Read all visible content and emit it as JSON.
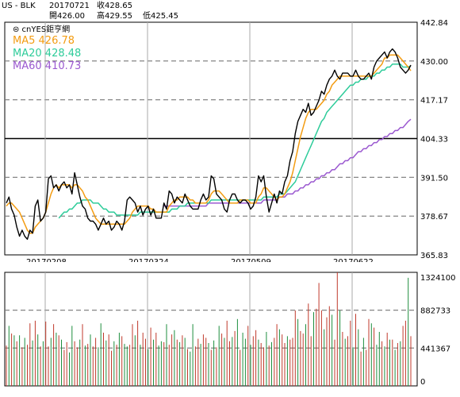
{
  "header": {
    "symbol": "US - BLK",
    "date": "20170721",
    "close_label": "收428.65",
    "open_label": "開426.00",
    "high_label": "高429.55",
    "low_label": "低425.45"
  },
  "chart_data": [
    {
      "type": "line",
      "title": "",
      "source_label": "⊜ cnYES鉅亨網",
      "x_ticks": [
        "20170208",
        "20170324",
        "20170509",
        "20170622"
      ],
      "y_ticks": [
        "442.84",
        "430.00",
        "417.17",
        "404.33",
        "391.50",
        "378.67",
        "365.83"
      ],
      "ylim": [
        365.83,
        442.84
      ],
      "reference_line": 404.33,
      "grid": true,
      "legend": [
        {
          "name": "MA5",
          "value": "426.78",
          "color": "#f39c12"
        },
        {
          "name": "MA20",
          "value": "428.48",
          "color": "#2ecc9a"
        },
        {
          "name": "MA60",
          "value": "410.73",
          "color": "#9b59d0"
        }
      ],
      "series": [
        {
          "name": "US - BLK",
          "color": "#000000",
          "values": [
            383,
            385,
            381,
            379,
            375,
            372,
            374,
            372,
            371,
            374,
            373,
            382,
            384,
            377,
            378,
            380,
            391,
            392,
            388,
            389,
            387,
            389,
            390,
            388,
            389,
            386,
            393,
            389,
            385,
            382,
            381,
            378,
            377,
            377,
            376,
            374,
            376,
            378,
            376,
            377,
            374,
            375,
            377,
            376,
            374,
            377,
            384,
            385,
            384,
            383,
            380,
            382,
            379,
            381,
            382,
            379,
            381,
            378,
            378,
            378,
            383,
            381,
            387,
            386,
            383,
            385,
            384,
            383,
            386,
            384,
            382,
            381,
            381,
            381,
            384,
            386,
            384,
            385,
            392,
            391,
            386,
            385,
            384,
            381,
            380,
            384,
            386,
            386,
            384,
            383,
            384,
            384,
            383,
            381,
            382,
            385,
            392,
            390,
            392,
            385,
            380,
            383,
            386,
            383,
            387,
            386,
            390,
            392,
            397,
            400,
            406,
            410,
            412,
            414,
            413,
            416,
            412,
            413,
            415,
            417,
            420,
            419,
            422,
            424,
            425,
            427,
            425,
            424,
            426,
            426,
            426,
            425,
            425,
            427,
            425,
            424,
            424,
            425,
            426,
            424,
            428,
            430,
            431,
            432,
            433,
            431,
            433,
            434,
            433,
            431,
            428,
            427,
            426,
            427,
            428.65
          ]
        },
        {
          "name": "MA5",
          "color": "#f39c12",
          "values": [
            382,
            383,
            383,
            382,
            381,
            380,
            378,
            376,
            374,
            373,
            373,
            375,
            376,
            377,
            378,
            380,
            383,
            386,
            388,
            389,
            388,
            389,
            389,
            389,
            389,
            388,
            389,
            389,
            388,
            387,
            385,
            384,
            382,
            380,
            378,
            377,
            376,
            376,
            376,
            376,
            376,
            376,
            376,
            376,
            376,
            376,
            377,
            378,
            380,
            381,
            382,
            382,
            382,
            382,
            382,
            381,
            381,
            380,
            380,
            380,
            380,
            380,
            382,
            383,
            384,
            384,
            385,
            385,
            385,
            385,
            384,
            384,
            383,
            383,
            383,
            383,
            383,
            384,
            386,
            387,
            387,
            387,
            386,
            385,
            384,
            383,
            383,
            383,
            383,
            384,
            384,
            384,
            384,
            383,
            383,
            383,
            385,
            386,
            388,
            388,
            387,
            386,
            385,
            384,
            385,
            385,
            386,
            388,
            390,
            393,
            397,
            401,
            405,
            408,
            411,
            413,
            414,
            414,
            414,
            415,
            416,
            417,
            419,
            420,
            422,
            423,
            424,
            425,
            425,
            425,
            425,
            425,
            425,
            425,
            425,
            425,
            425,
            425,
            425,
            425,
            426,
            427,
            428,
            429,
            431,
            431,
            432,
            432,
            432,
            432,
            431,
            430,
            429,
            428,
            426.78
          ]
        },
        {
          "name": "MA20",
          "color": "#2ecc9a",
          "values": [
            null,
            null,
            null,
            null,
            null,
            null,
            null,
            null,
            null,
            null,
            null,
            null,
            null,
            null,
            null,
            null,
            null,
            null,
            null,
            null,
            378,
            379,
            380,
            380,
            381,
            381,
            382,
            383,
            383,
            384,
            384,
            384,
            384,
            383,
            383,
            383,
            382,
            381,
            381,
            380,
            380,
            380,
            379,
            379,
            379,
            379,
            379,
            379,
            379,
            379,
            379,
            380,
            380,
            380,
            380,
            380,
            380,
            380,
            380,
            380,
            380,
            380,
            380,
            381,
            381,
            381,
            382,
            382,
            382,
            383,
            383,
            383,
            383,
            383,
            383,
            383,
            383,
            383,
            384,
            384,
            384,
            384,
            384,
            384,
            384,
            384,
            384,
            384,
            384,
            384,
            384,
            384,
            384,
            384,
            384,
            384,
            384,
            384,
            385,
            385,
            385,
            385,
            385,
            385,
            386,
            386,
            386,
            387,
            388,
            389,
            390,
            392,
            394,
            396,
            398,
            400,
            402,
            404,
            406,
            408,
            410,
            411,
            413,
            414,
            415,
            416,
            417,
            418,
            419,
            420,
            421,
            422,
            422,
            423,
            423,
            424,
            424,
            424,
            425,
            425,
            425,
            426,
            426,
            427,
            427,
            428,
            428,
            429,
            429,
            429,
            429,
            428,
            428,
            428,
            428.48
          ]
        },
        {
          "name": "MA60",
          "color": "#9b59d0",
          "values": [
            null,
            null,
            null,
            null,
            null,
            null,
            null,
            null,
            null,
            null,
            null,
            null,
            null,
            null,
            null,
            null,
            null,
            null,
            null,
            null,
            null,
            null,
            null,
            null,
            null,
            null,
            null,
            null,
            null,
            null,
            null,
            null,
            null,
            null,
            null,
            null,
            null,
            null,
            null,
            null,
            null,
            null,
            null,
            null,
            null,
            null,
            null,
            null,
            null,
            null,
            null,
            null,
            null,
            null,
            null,
            null,
            null,
            null,
            null,
            null,
            382,
            382,
            382,
            382,
            382,
            382,
            382,
            382,
            382,
            382,
            382,
            382,
            382,
            382,
            382,
            382,
            382,
            383,
            383,
            383,
            383,
            383,
            383,
            383,
            383,
            383,
            383,
            383,
            383,
            383,
            383,
            383,
            383,
            383,
            383,
            383,
            383,
            383,
            384,
            384,
            384,
            384,
            384,
            384,
            385,
            385,
            385,
            386,
            386,
            386,
            387,
            387,
            388,
            388,
            389,
            389,
            390,
            390,
            391,
            391,
            392,
            392,
            393,
            393,
            394,
            394,
            395,
            396,
            396,
            397,
            397,
            398,
            398,
            399,
            400,
            400,
            401,
            401,
            402,
            402,
            403,
            403,
            404,
            404,
            405,
            405,
            406,
            406,
            407,
            407,
            408,
            408,
            409,
            410,
            410.73
          ]
        }
      ]
    },
    {
      "type": "bar",
      "title": "",
      "y_ticks": [
        "1324100",
        "882733",
        "441367",
        "0"
      ],
      "ylim": [
        0,
        1324100
      ],
      "grid": true,
      "up_color": "#c0392b",
      "down_color": "#1e8e3e",
      "volumes": [
        470000,
        700000,
        610000,
        590000,
        520000,
        590000,
        450000,
        560000,
        480000,
        730000,
        530000,
        760000,
        600000,
        460000,
        520000,
        750000,
        460000,
        560000,
        720000,
        620000,
        590000,
        540000,
        420000,
        510000,
        390000,
        700000,
        520000,
        450000,
        540000,
        720000,
        470000,
        490000,
        600000,
        460000,
        560000,
        450000,
        730000,
        620000,
        530000,
        600000,
        410000,
        520000,
        480000,
        620000,
        580000,
        490000,
        460000,
        480000,
        720000,
        590000,
        760000,
        480000,
        620000,
        550000,
        430000,
        680000,
        540000,
        620000,
        470000,
        520000,
        510000,
        720000,
        480000,
        600000,
        650000,
        540000,
        510000,
        590000,
        560000,
        430000,
        400000,
        720000,
        460000,
        550000,
        490000,
        600000,
        560000,
        500000,
        420000,
        530000,
        450000,
        700000,
        610000,
        560000,
        760000,
        520000,
        570000,
        640000,
        780000,
        420000,
        620000,
        550000,
        700000,
        480000,
        580000,
        650000,
        540000,
        500000,
        450000,
        630000,
        470000,
        510000,
        560000,
        720000,
        660000,
        600000,
        500000,
        580000,
        540000,
        560000,
        880000,
        780000,
        640000,
        610000,
        720000,
        960000,
        580000,
        860000,
        900000,
        1200000,
        880000,
        660000,
        800000,
        930000,
        830000,
        540000,
        1324000,
        880000,
        630000,
        550000,
        580000,
        760000,
        450000,
        840000,
        660000,
        400000,
        560000,
        420000,
        780000,
        730000,
        680000,
        480000,
        630000,
        520000,
        460000,
        620000,
        540000,
        540000,
        420000,
        500000,
        520000,
        700000,
        760000,
        1260000,
        580000
      ],
      "up_flags": [
        1,
        0,
        1,
        0,
        1,
        0,
        1,
        0,
        1,
        1,
        0,
        1,
        0,
        1,
        0,
        1,
        1,
        0,
        1,
        0,
        1,
        0,
        1,
        1,
        0,
        0,
        1,
        1,
        0,
        1,
        0,
        1,
        0,
        1,
        1,
        0,
        0,
        1,
        0,
        1,
        1,
        0,
        1,
        0,
        1,
        0,
        0,
        1,
        1,
        0,
        1,
        0,
        1,
        1,
        0,
        1,
        0,
        1,
        0,
        0,
        1,
        0,
        1,
        1,
        0,
        1,
        0,
        1,
        0,
        1,
        0,
        0,
        1,
        1,
        0,
        1,
        1,
        0,
        1,
        0,
        1,
        0,
        1,
        0,
        1,
        1,
        0,
        1,
        0,
        1,
        0,
        0,
        1,
        0,
        1,
        1,
        0,
        1,
        1,
        0,
        1,
        0,
        1,
        1,
        0,
        1,
        1,
        0,
        1,
        1,
        1,
        0,
        1,
        1,
        0,
        1,
        1,
        0,
        1,
        1,
        1,
        0,
        1,
        1,
        0,
        1,
        1,
        0,
        1,
        0,
        1,
        1,
        0,
        1,
        0,
        1,
        0,
        1,
        1,
        0,
        1,
        0,
        0,
        1,
        0,
        1,
        0,
        1,
        0,
        1,
        0,
        1,
        1,
        0,
        1
      ]
    }
  ]
}
